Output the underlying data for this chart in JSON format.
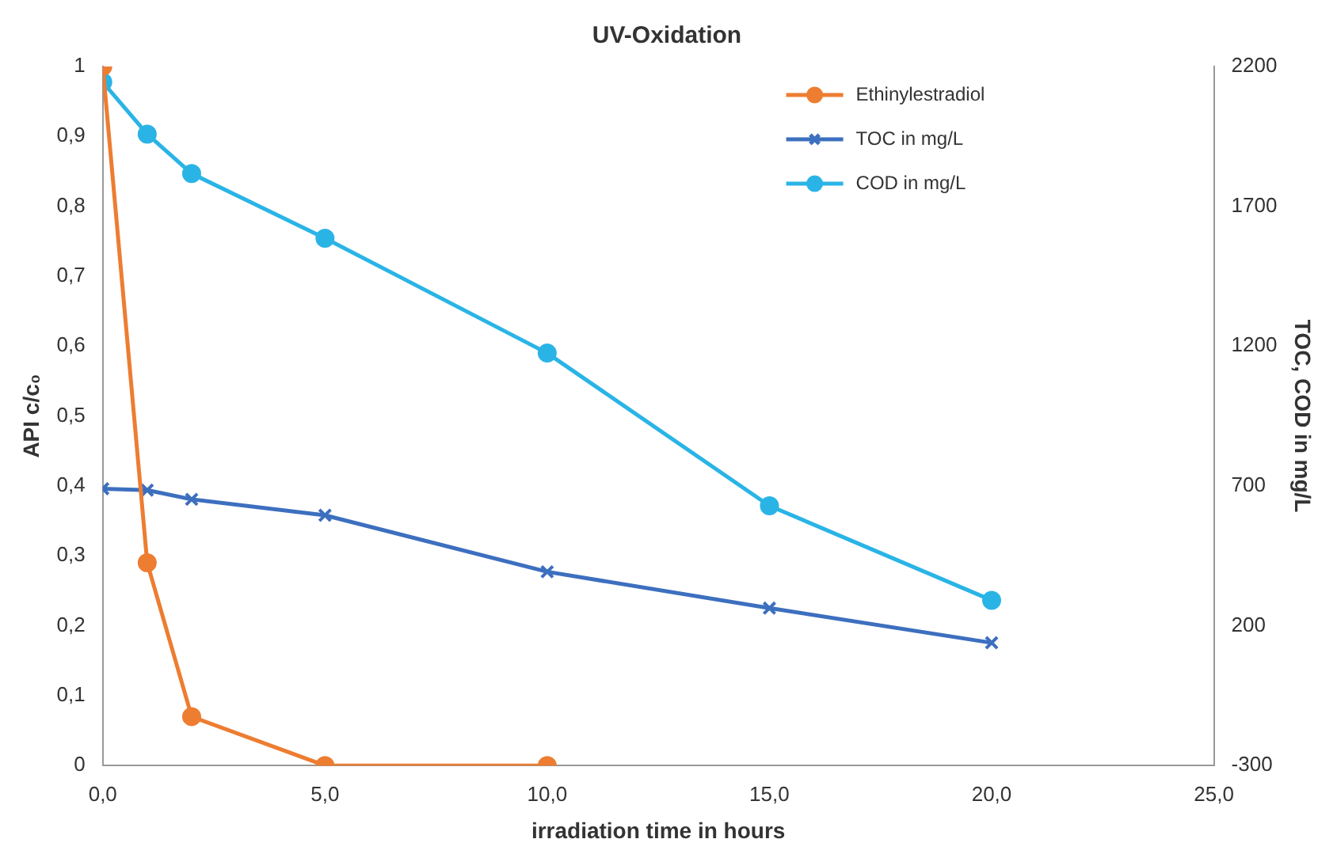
{
  "chart_data": {
    "type": "line",
    "title": "UV-Oxidation",
    "xlabel": "irradiation time in hours",
    "ylabel": "API c/c₀",
    "y2label": "TOC, COD in mg/L",
    "xlim": [
      0,
      25
    ],
    "xticks": [
      {
        "value": 0,
        "label": "0,0"
      },
      {
        "value": 5,
        "label": "5,0"
      },
      {
        "value": 10,
        "label": "10,0"
      },
      {
        "value": 15,
        "label": "15,0"
      },
      {
        "value": 20,
        "label": "20,0"
      },
      {
        "value": 25,
        "label": "25,0"
      }
    ],
    "ylim": [
      0,
      1
    ],
    "yticks": [
      0,
      {
        "value": 0.1,
        "label": "0,1"
      },
      {
        "value": 0.2,
        "label": "0,2"
      },
      {
        "value": 0.3,
        "label": "0,3"
      },
      {
        "value": 0.4,
        "label": "0,4"
      },
      {
        "value": 0.5,
        "label": "0,5"
      },
      {
        "value": 0.6,
        "label": "0,6"
      },
      {
        "value": 0.7,
        "label": "0,7"
      },
      {
        "value": 0.8,
        "label": "0,8"
      },
      {
        "value": 0.9,
        "label": "0,9"
      },
      1
    ],
    "y2lim": [
      -300,
      2200
    ],
    "y2ticks": [
      -300,
      200,
      700,
      1200,
      1700,
      2200
    ],
    "legend": "top right",
    "grid": false,
    "line_style": "solid",
    "series": [
      {
        "name": "Ethinylestradiol",
        "color": "#ed7d31",
        "marker": "circle",
        "x": [
          0,
          1,
          2,
          5,
          10
        ],
        "values": [
          1,
          0.29,
          0.07,
          0,
          0
        ]
      },
      {
        "name": "TOC in mg/L",
        "color": "#3d6fbf",
        "marker": "cross",
        "axis": "y2",
        "x": [
          0,
          1,
          2,
          5,
          10,
          15,
          20
        ],
        "values": [
          690,
          685,
          652,
          595,
          393,
          263,
          139
        ]
      },
      {
        "name": "COD in mg/L",
        "color": "#2ab4e6",
        "marker": "circle",
        "axis": "y2",
        "x": [
          0,
          1,
          2,
          5,
          10,
          15,
          20
        ],
        "values": [
          2144,
          1958,
          1817,
          1586,
          1175,
          629,
          291
        ]
      }
    ]
  }
}
